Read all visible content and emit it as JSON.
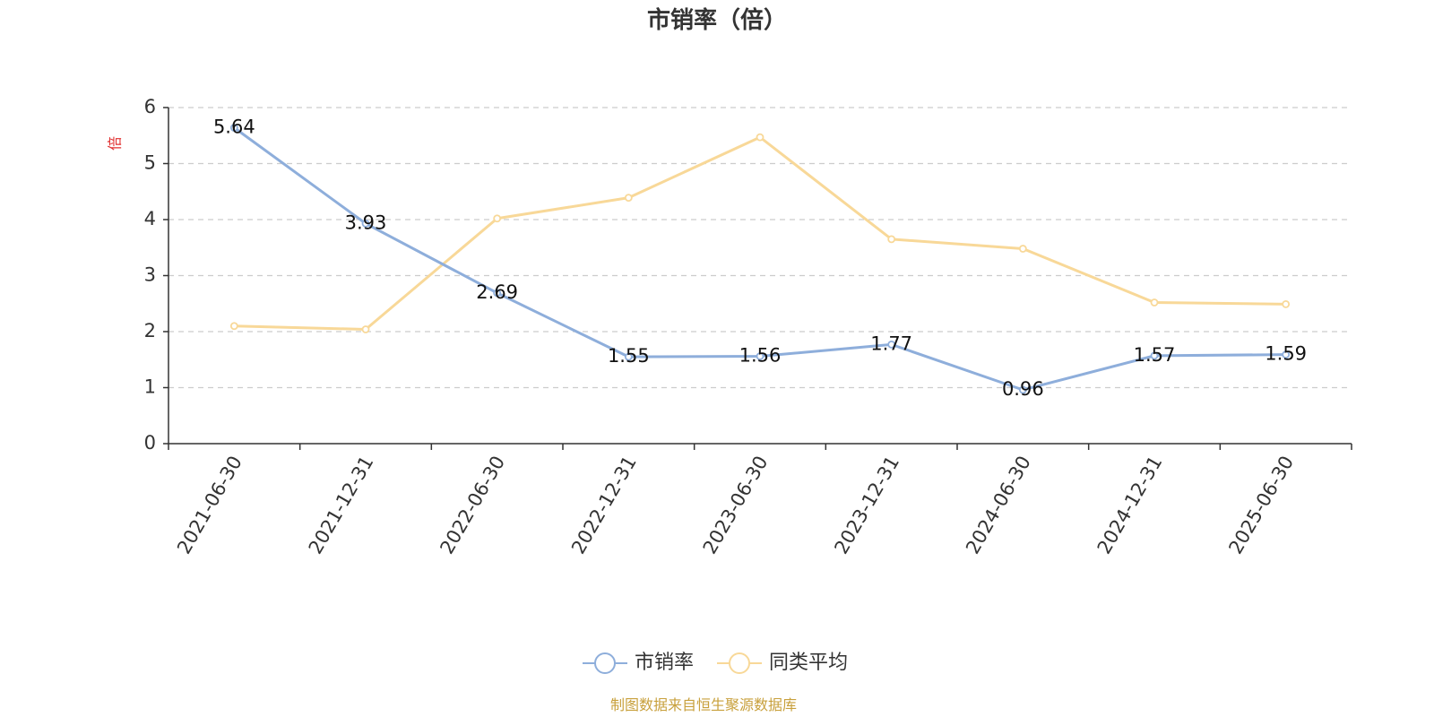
{
  "chart_data": {
    "type": "line",
    "title": "市销率（倍）",
    "ylabel": "倍",
    "xlabel": "",
    "x": [
      "2021-06-30",
      "2021-12-31",
      "2022-06-30",
      "2022-12-31",
      "2023-06-30",
      "2023-12-31",
      "2024-06-30",
      "2024-12-31",
      "2025-06-30"
    ],
    "ylim": [
      0,
      6
    ],
    "yticks": [
      0,
      1,
      2,
      3,
      4,
      5,
      6
    ],
    "grid": true,
    "legend": "bottom-center",
    "series": [
      {
        "name": "市销率",
        "color": "#8eaedb",
        "values": [
          5.64,
          3.93,
          2.69,
          1.55,
          1.56,
          1.77,
          0.96,
          1.57,
          1.59
        ],
        "labels": [
          "5.64",
          "3.93",
          "2.69",
          "1.55",
          "1.56",
          "1.77",
          "0.96",
          "1.57",
          "1.59"
        ]
      },
      {
        "name": "同类平均",
        "color": "#f8d898",
        "values": [
          2.1,
          2.04,
          4.02,
          4.39,
          5.47,
          3.65,
          3.48,
          2.52,
          2.49
        ]
      }
    ]
  },
  "source": {
    "text": "制图数据来自恒生聚源数据库",
    "color": "#c8a03c"
  },
  "colors": {
    "unit": "#e03030",
    "axis": "#333333",
    "grid": "#cccccc"
  }
}
